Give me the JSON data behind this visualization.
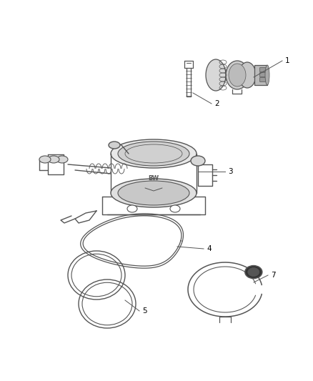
{
  "background_color": "#ffffff",
  "line_color": "#555555",
  "label_color": "#000000",
  "fig_width": 4.38,
  "fig_height": 5.33,
  "dpi": 100,
  "label_fontsize": 7.5,
  "lw": 1.0
}
